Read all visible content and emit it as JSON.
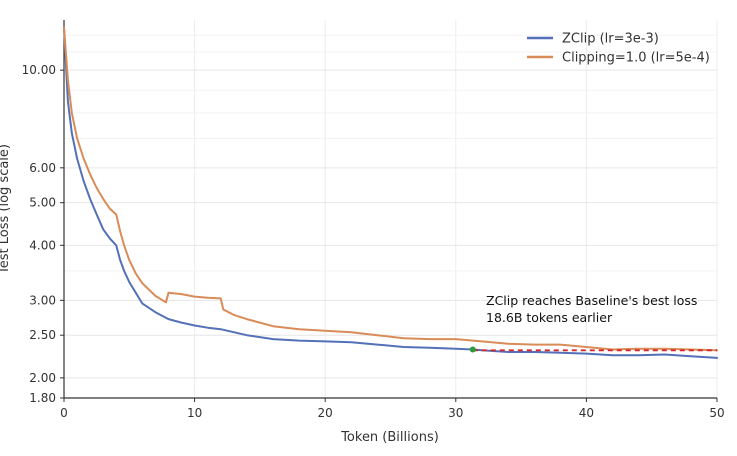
{
  "chart_data": {
    "type": "line",
    "title": "",
    "xlabel": "Token (Billions)",
    "ylabel": "Test Loss (log scale)",
    "yscale": "log",
    "xlim": [
      0,
      50
    ],
    "ylim": [
      1.8,
      13.0
    ],
    "grid": true,
    "legend_position": "top-right",
    "xticks": [
      "0",
      "10",
      "20",
      "30",
      "40",
      "50"
    ],
    "yticks": [
      "1.80",
      "2.00",
      "2.50",
      "3.00",
      "4.00",
      "5.00",
      "6.00",
      "10.00"
    ],
    "series": [
      {
        "name": "ZClip (lr=3e-3)",
        "color": "#5470b8",
        "x": [
          0,
          0.3,
          0.6,
          1,
          1.5,
          2,
          2.5,
          3,
          3.5,
          4,
          4.3,
          4.6,
          5,
          5.5,
          6,
          7,
          8,
          9,
          10,
          11,
          12,
          14,
          16,
          18,
          20,
          22,
          24,
          26,
          28,
          30,
          31.3,
          32,
          34,
          36,
          38,
          40,
          42,
          44,
          46,
          48,
          50
        ],
        "y": [
          12.5,
          8.5,
          7.2,
          6.3,
          5.6,
          5.1,
          4.7,
          4.35,
          4.15,
          4.0,
          3.7,
          3.5,
          3.3,
          3.12,
          2.95,
          2.82,
          2.72,
          2.67,
          2.63,
          2.6,
          2.58,
          2.5,
          2.45,
          2.43,
          2.42,
          2.41,
          2.38,
          2.35,
          2.34,
          2.33,
          2.32,
          2.31,
          2.29,
          2.29,
          2.28,
          2.27,
          2.25,
          2.25,
          2.26,
          2.24,
          2.22
        ]
      },
      {
        "name": "Clipping=1.0 (lr=5e-4)",
        "color": "#d98b58",
        "x": [
          0,
          0.3,
          0.6,
          1,
          1.5,
          2,
          2.5,
          3,
          3.5,
          4,
          4.3,
          4.6,
          5,
          5.5,
          6,
          7,
          7.8,
          8,
          9,
          10,
          11,
          12,
          12.2,
          13,
          14,
          16,
          18,
          20,
          22,
          24,
          26,
          28,
          30,
          32,
          34,
          36,
          38,
          40,
          42,
          44,
          46,
          48,
          50
        ],
        "y": [
          12.5,
          9.5,
          8.0,
          7.0,
          6.3,
          5.8,
          5.4,
          5.1,
          4.85,
          4.7,
          4.3,
          4.0,
          3.7,
          3.45,
          3.28,
          3.07,
          2.97,
          3.12,
          3.1,
          3.06,
          3.04,
          3.03,
          2.86,
          2.78,
          2.72,
          2.62,
          2.58,
          2.56,
          2.54,
          2.5,
          2.46,
          2.45,
          2.45,
          2.42,
          2.39,
          2.38,
          2.38,
          2.35,
          2.32,
          2.33,
          2.33,
          2.32,
          2.31
        ]
      }
    ],
    "annotation": {
      "line1": "ZClip reaches Baseline's best loss",
      "line2": "18.6B tokens earlier",
      "marker_point": [
        31.3,
        2.32
      ],
      "dashed_line_x": [
        31.3,
        50
      ],
      "dashed_line_y": 2.31,
      "marker_color": "#2a9d3a",
      "dashed_color": "#d62728"
    }
  }
}
